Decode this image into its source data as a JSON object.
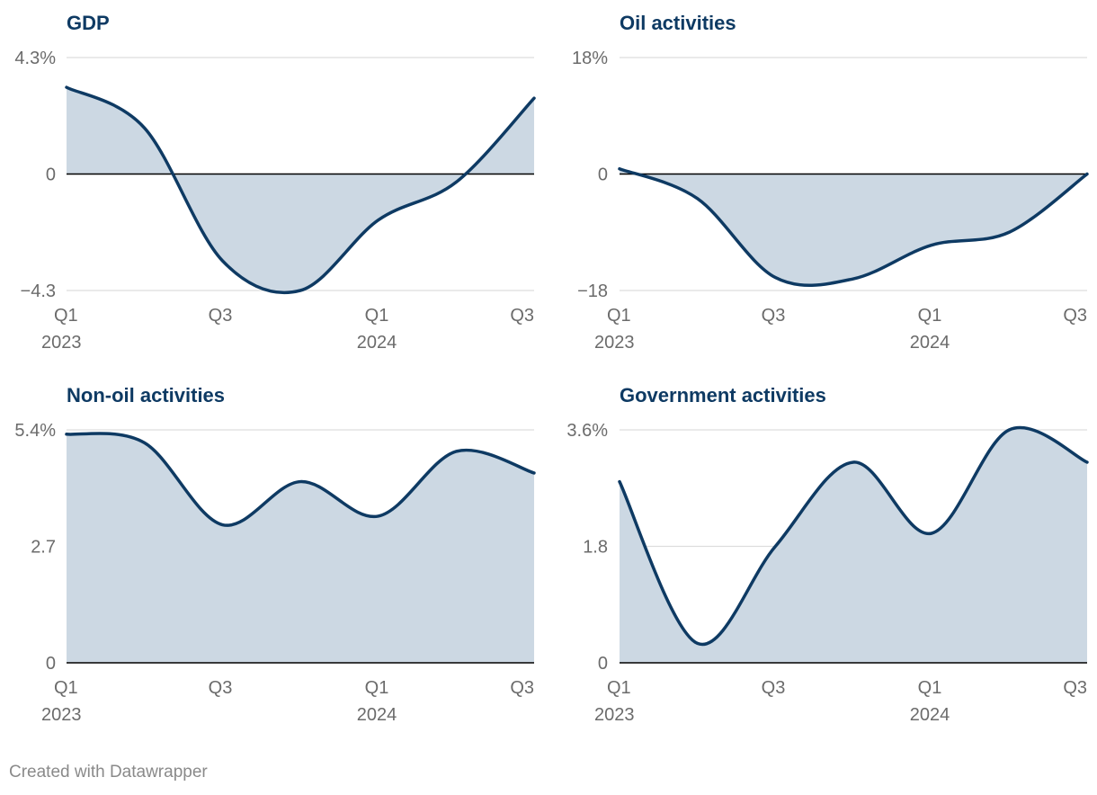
{
  "footer": "Created with Datawrapper",
  "colors": {
    "line": "#0e3a63",
    "area": "#ccd8e3",
    "grid": "#dddddd",
    "baseline": "#000000",
    "title": "#0e3a63"
  },
  "chart_data": [
    {
      "type": "area",
      "title": "GDP",
      "x": [
        "2023-Q1",
        "2023-Q2",
        "2023-Q3",
        "2023-Q4",
        "2024-Q1",
        "2024-Q2",
        "2024-Q3"
      ],
      "values": [
        3.2,
        1.7,
        -3.2,
        -4.3,
        -1.7,
        -0.3,
        2.8
      ],
      "ylim": [
        -4.3,
        4.3
      ],
      "y_ticks": [
        4.3,
        0,
        -4.3
      ],
      "y_tick_labels": [
        "4.3%",
        "0",
        "−4.3"
      ],
      "x_tick_labels": [
        {
          "q": "Q1",
          "year": "2023"
        },
        {
          "q": "Q3",
          "year": ""
        },
        {
          "q": "Q1",
          "year": "2024"
        },
        {
          "q": "Q3",
          "year": ""
        }
      ],
      "baseline": 0
    },
    {
      "type": "area",
      "title": "Oil activities",
      "x": [
        "2023-Q1",
        "2023-Q2",
        "2023-Q3",
        "2023-Q4",
        "2024-Q1",
        "2024-Q2",
        "2024-Q3"
      ],
      "values": [
        0.8,
        -3.8,
        -16.0,
        -16.2,
        -11.0,
        -9.0,
        0
      ],
      "ylim": [
        -18,
        18
      ],
      "y_ticks": [
        18,
        0,
        -18
      ],
      "y_tick_labels": [
        "18%",
        "0",
        "−18"
      ],
      "x_tick_labels": [
        {
          "q": "Q1",
          "year": "2023"
        },
        {
          "q": "Q3",
          "year": ""
        },
        {
          "q": "Q1",
          "year": "2024"
        },
        {
          "q": "Q3",
          "year": ""
        }
      ],
      "baseline": 0
    },
    {
      "type": "area",
      "title": "Non-oil activities",
      "x": [
        "2023-Q1",
        "2023-Q2",
        "2023-Q3",
        "2023-Q4",
        "2024-Q1",
        "2024-Q2",
        "2024-Q3"
      ],
      "values": [
        5.3,
        5.1,
        3.2,
        4.2,
        3.4,
        4.9,
        4.4
      ],
      "ylim": [
        0,
        5.4
      ],
      "y_ticks": [
        5.4,
        2.7,
        0
      ],
      "y_tick_labels": [
        "5.4%",
        "2.7",
        "0"
      ],
      "x_tick_labels": [
        {
          "q": "Q1",
          "year": "2023"
        },
        {
          "q": "Q3",
          "year": ""
        },
        {
          "q": "Q1",
          "year": "2024"
        },
        {
          "q": "Q3",
          "year": ""
        }
      ],
      "baseline": 0
    },
    {
      "type": "area",
      "title": "Government activities",
      "x": [
        "2023-Q1",
        "2023-Q2",
        "2023-Q3",
        "2023-Q4",
        "2024-Q1",
        "2024-Q2",
        "2024-Q3"
      ],
      "values": [
        2.8,
        0.3,
        1.8,
        3.1,
        2.0,
        3.6,
        3.1
      ],
      "ylim": [
        0,
        3.6
      ],
      "y_ticks": [
        3.6,
        1.8,
        0
      ],
      "y_tick_labels": [
        "3.6%",
        "1.8",
        "0"
      ],
      "x_tick_labels": [
        {
          "q": "Q1",
          "year": "2023"
        },
        {
          "q": "Q3",
          "year": ""
        },
        {
          "q": "Q1",
          "year": "2024"
        },
        {
          "q": "Q3",
          "year": ""
        }
      ],
      "baseline": 0
    }
  ]
}
